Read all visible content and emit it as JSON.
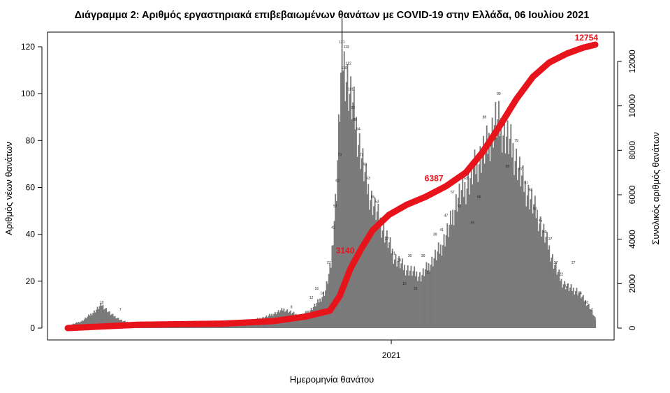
{
  "chart_data": {
    "type": "bar",
    "title": "Διάγραμμα 2: Αριθμός εργαστηριακά επιβεβαιωμένων θανάτων με COVID-19 στην Ελλάδα, 06 Ιουλίου 2021",
    "xlabel": "Ημερομηνία θανάτου",
    "ylabel": "Αριθμός νέων θανάτων",
    "y2label": "Συνολικός αριθμός θανάτων",
    "x_tick_labels": [
      "2021"
    ],
    "y_ticks": [
      0,
      20,
      40,
      60,
      80,
      100,
      120
    ],
    "y2_ticks": [
      0,
      2000,
      4000,
      6000,
      8000,
      10000,
      12000
    ],
    "ylim": [
      0,
      125
    ],
    "y2lim": [
      0,
      12880
    ],
    "bar_color": "#7a7a7a",
    "line_color": "#e8141c",
    "first_date": "2020-03-12",
    "x_tick_date": "2021-01-01",
    "daily_keypoints": [
      [
        "2020-03-12",
        1
      ],
      [
        "2020-03-25",
        3
      ],
      [
        "2020-04-05",
        7
      ],
      [
        "2020-04-12",
        10
      ],
      [
        "2020-04-20",
        6
      ],
      [
        "2020-05-01",
        3
      ],
      [
        "2020-05-20",
        1
      ],
      [
        "2020-06-20",
        1
      ],
      [
        "2020-07-20",
        1
      ],
      [
        "2020-08-10",
        3
      ],
      [
        "2020-08-25",
        3
      ],
      [
        "2020-09-10",
        5
      ],
      [
        "2020-09-25",
        8
      ],
      [
        "2020-10-10",
        5
      ],
      [
        "2020-10-20",
        8
      ],
      [
        "2020-10-28",
        12
      ],
      [
        "2020-11-02",
        16
      ],
      [
        "2020-11-07",
        27
      ],
      [
        "2020-11-12",
        60
      ],
      [
        "2020-11-17",
        118
      ],
      [
        "2020-11-20",
        110
      ],
      [
        "2020-11-24",
        100
      ],
      [
        "2020-11-28",
        92
      ],
      [
        "2020-12-02",
        80
      ],
      [
        "2020-12-06",
        70
      ],
      [
        "2020-12-10",
        60
      ],
      [
        "2020-12-16",
        52
      ],
      [
        "2020-12-22",
        45
      ],
      [
        "2020-12-28",
        38
      ],
      [
        "2021-01-04",
        30
      ],
      [
        "2021-01-12",
        26
      ],
      [
        "2021-01-20",
        24
      ],
      [
        "2021-01-28",
        22
      ],
      [
        "2021-02-05",
        27
      ],
      [
        "2021-02-15",
        34
      ],
      [
        "2021-02-23",
        43
      ],
      [
        "2021-03-02",
        55
      ],
      [
        "2021-03-10",
        60
      ],
      [
        "2021-03-20",
        70
      ],
      [
        "2021-03-30",
        78
      ],
      [
        "2021-04-06",
        88
      ],
      [
        "2021-04-12",
        85
      ],
      [
        "2021-04-18",
        80
      ],
      [
        "2021-04-24",
        73
      ],
      [
        "2021-05-01",
        62
      ],
      [
        "2021-05-08",
        55
      ],
      [
        "2021-05-15",
        47
      ],
      [
        "2021-05-22",
        38
      ],
      [
        "2021-05-29",
        28
      ],
      [
        "2021-06-05",
        20
      ],
      [
        "2021-06-12",
        17
      ],
      [
        "2021-06-19",
        16
      ],
      [
        "2021-06-26",
        12
      ],
      [
        "2021-07-01",
        9
      ],
      [
        "2021-07-05",
        5
      ],
      [
        "2021-07-06",
        3
      ]
    ],
    "bar_labels": [
      {
        "date": "2020-04-12",
        "value": 10
      },
      {
        "date": "2020-04-29",
        "value": 7
      },
      {
        "date": "2020-10-02",
        "value": 8
      },
      {
        "date": "2020-10-20",
        "value": 12
      },
      {
        "date": "2020-10-25",
        "value": 16
      },
      {
        "date": "2020-10-30",
        "value": 14
      },
      {
        "date": "2020-11-05",
        "value": 27
      },
      {
        "date": "2020-11-09",
        "value": 42
      },
      {
        "date": "2020-11-11",
        "value": 51
      },
      {
        "date": "2020-11-13",
        "value": 62
      },
      {
        "date": "2020-11-15",
        "value": 73
      },
      {
        "date": "2020-11-17",
        "value": 121
      },
      {
        "date": "2020-11-19",
        "value": 110
      },
      {
        "date": "2020-11-21",
        "value": 119
      },
      {
        "date": "2020-11-23",
        "value": 112
      },
      {
        "date": "2020-11-25",
        "value": 101
      },
      {
        "date": "2020-11-27",
        "value": 93
      },
      {
        "date": "2020-11-29",
        "value": 88
      },
      {
        "date": "2020-12-02",
        "value": 84
      },
      {
        "date": "2020-12-05",
        "value": 73
      },
      {
        "date": "2020-12-08",
        "value": 69
      },
      {
        "date": "2020-12-11",
        "value": 63
      },
      {
        "date": "2020-12-15",
        "value": 55
      },
      {
        "date": "2020-12-19",
        "value": 53
      },
      {
        "date": "2020-12-23",
        "value": 45
      },
      {
        "date": "2020-12-28",
        "value": 37
      },
      {
        "date": "2021-01-03",
        "value": 31
      },
      {
        "date": "2021-01-08",
        "value": 28
      },
      {
        "date": "2021-01-13",
        "value": 18
      },
      {
        "date": "2021-01-18",
        "value": 30
      },
      {
        "date": "2021-01-23",
        "value": 16
      },
      {
        "date": "2021-01-30",
        "value": 30
      },
      {
        "date": "2021-02-04",
        "value": 23
      },
      {
        "date": "2021-02-10",
        "value": 39
      },
      {
        "date": "2021-02-16",
        "value": 41
      },
      {
        "date": "2021-02-20",
        "value": 47
      },
      {
        "date": "2021-02-26",
        "value": 57
      },
      {
        "date": "2021-03-04",
        "value": 51
      },
      {
        "date": "2021-03-10",
        "value": 63
      },
      {
        "date": "2021-03-16",
        "value": 44
      },
      {
        "date": "2021-03-22",
        "value": 55
      },
      {
        "date": "2021-03-27",
        "value": 89
      },
      {
        "date": "2021-04-01",
        "value": 77
      },
      {
        "date": "2021-04-05",
        "value": 80
      },
      {
        "date": "2021-04-09",
        "value": 99
      },
      {
        "date": "2021-04-13",
        "value": 86
      },
      {
        "date": "2021-04-17",
        "value": 68
      },
      {
        "date": "2021-04-21",
        "value": 93
      },
      {
        "date": "2021-04-25",
        "value": 79
      },
      {
        "date": "2021-04-29",
        "value": 67
      },
      {
        "date": "2021-05-04",
        "value": 61
      },
      {
        "date": "2021-05-08",
        "value": 58
      },
      {
        "date": "2021-05-12",
        "value": 50
      },
      {
        "date": "2021-05-17",
        "value": 45
      },
      {
        "date": "2021-05-21",
        "value": 40
      },
      {
        "date": "2021-05-26",
        "value": 37
      },
      {
        "date": "2021-05-31",
        "value": 27
      },
      {
        "date": "2021-06-05",
        "value": 22
      },
      {
        "date": "2021-06-10",
        "value": 17
      },
      {
        "date": "2021-06-16",
        "value": 27
      },
      {
        "date": "2021-06-22",
        "value": 14
      },
      {
        "date": "2021-06-28",
        "value": 10
      },
      {
        "date": "2021-07-03",
        "value": 7
      },
      {
        "date": "2021-07-06",
        "value": 3
      }
    ],
    "cumulative_keypoints": [
      [
        "2020-03-12",
        0
      ],
      [
        "2020-05-15",
        150
      ],
      [
        "2020-08-01",
        200
      ],
      [
        "2020-09-15",
        310
      ],
      [
        "2020-10-15",
        520
      ],
      [
        "2020-11-06",
        780
      ],
      [
        "2020-11-15",
        1450
      ],
      [
        "2020-11-25",
        2700
      ],
      [
        "2020-12-05",
        3600
      ],
      [
        "2020-12-15",
        4400
      ],
      [
        "2020-12-30",
        5100
      ],
      [
        "2021-01-15",
        5550
      ],
      [
        "2021-02-01",
        5900
      ],
      [
        "2021-02-20",
        6387
      ],
      [
        "2021-03-10",
        7000
      ],
      [
        "2021-03-25",
        7900
      ],
      [
        "2021-04-10",
        9100
      ],
      [
        "2021-04-25",
        10300
      ],
      [
        "2021-05-10",
        11300
      ],
      [
        "2021-05-25",
        11950
      ],
      [
        "2021-06-10",
        12350
      ],
      [
        "2021-06-25",
        12620
      ],
      [
        "2021-07-06",
        12754
      ]
    ],
    "cumulative_labels": [
      {
        "date": "2020-12-01",
        "value": 3140,
        "text": "3140"
      },
      {
        "date": "2021-02-20",
        "value": 6387,
        "text": "6387"
      },
      {
        "date": "2021-07-06",
        "value": 12754,
        "text": "12754"
      }
    ]
  }
}
